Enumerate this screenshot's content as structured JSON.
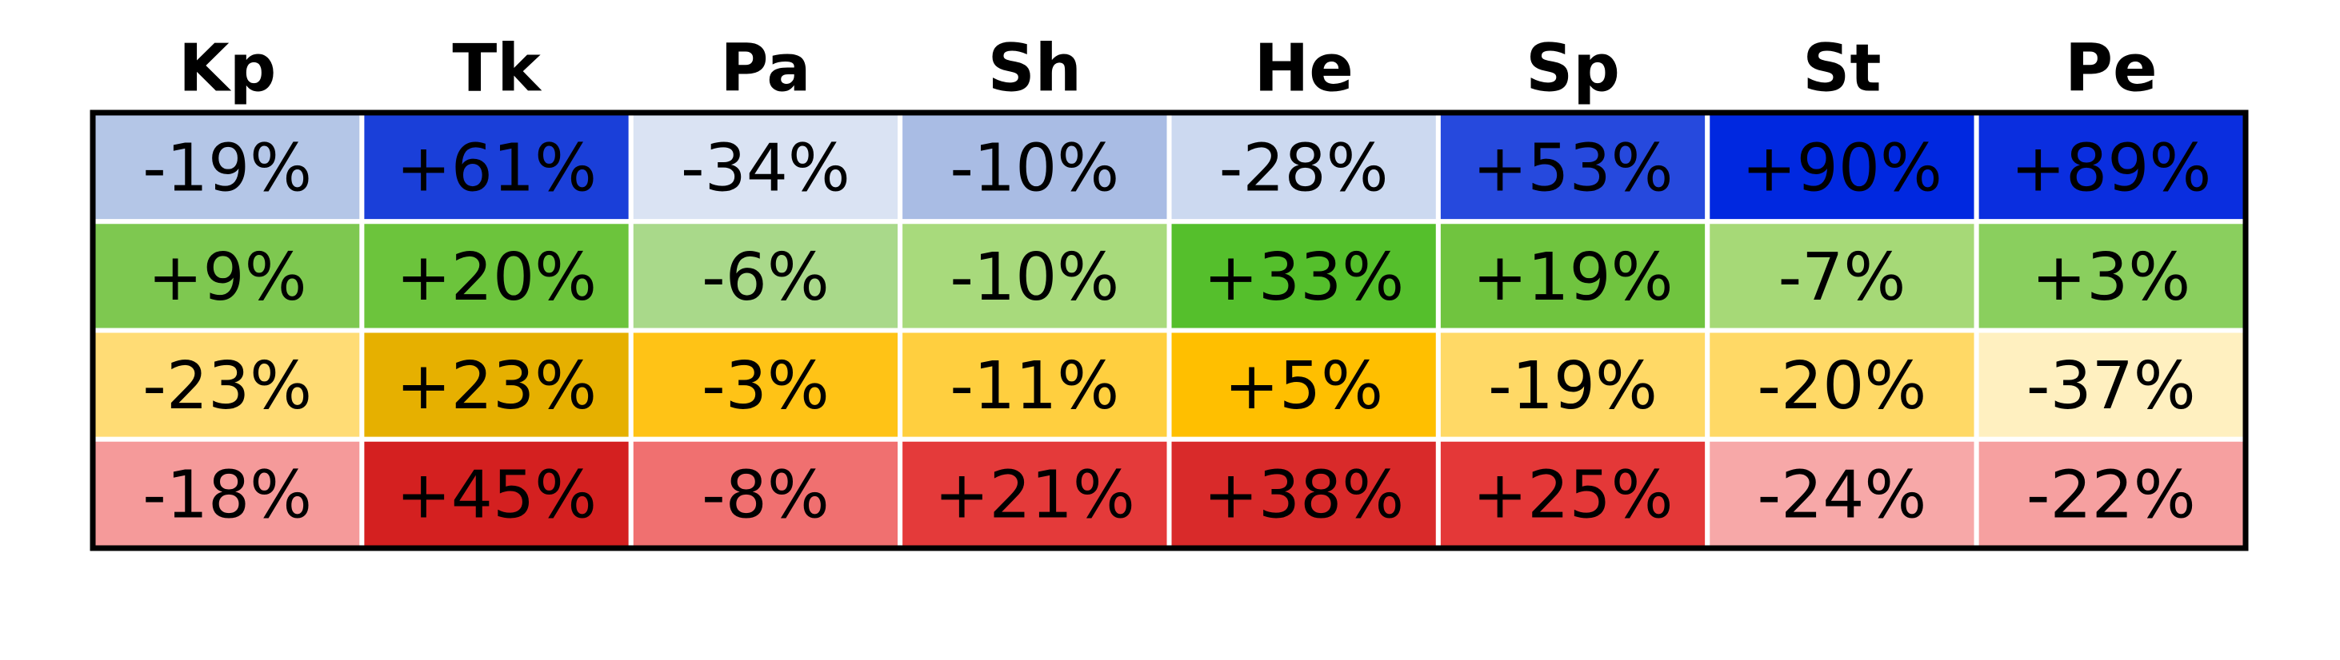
{
  "table": {
    "header": [
      "Kp",
      "Tk",
      "Pa",
      "Sh",
      "He",
      "Sp",
      "St",
      "Pe"
    ],
    "rows": [
      [
        "-19%",
        "+61%",
        "-34%",
        "-10%",
        "-28%",
        "+53%",
        "+90%",
        "+89%"
      ],
      [
        "+9%",
        "+20%",
        "-6%",
        "-10%",
        "+33%",
        "+19%",
        "-7%",
        "+3%"
      ],
      [
        "-23%",
        "+23%",
        "-3%",
        "-11%",
        "+5%",
        "-19%",
        "-20%",
        "-37%"
      ],
      [
        "-18%",
        "+45%",
        "-8%",
        "+21%",
        "+38%",
        "+25%",
        "-24%",
        "-22%"
      ]
    ],
    "colors": [
      [
        "#b4c6e7",
        "#1a3fd9",
        "#dae3f3",
        "#a9bce4",
        "#ccd9f0",
        "#2649dd",
        "#0028e0",
        "#0a2edf"
      ],
      [
        "#7ec850",
        "#6cc43c",
        "#a9d98a",
        "#a8da7c",
        "#55bf2c",
        "#70c43f",
        "#a6d977",
        "#8acf5e"
      ],
      [
        "#ffdc75",
        "#e6b000",
        "#ffc316",
        "#ffcf3f",
        "#ffbf00",
        "#ffd966",
        "#ffd966",
        "#fff0c0"
      ],
      [
        "#f59a9a",
        "#d42020",
        "#f07070",
        "#e43a3a",
        "#d92a2a",
        "#e43838",
        "#f7a8a8",
        "#f6a0a0"
      ]
    ]
  }
}
